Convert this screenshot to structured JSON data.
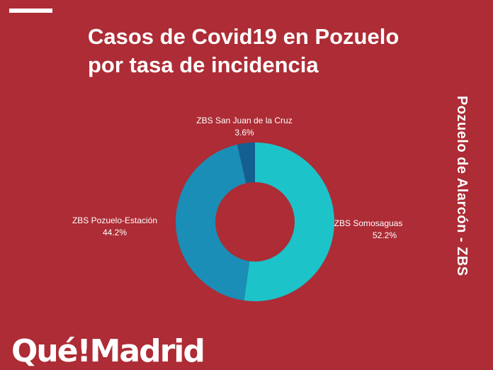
{
  "title_line1": "Casos de Covid19 en Pozuelo",
  "title_line2": "por tasa de incidencia",
  "side_title": "Pozuelo de Alarcón - ZBS",
  "logo": "Qué!Madrid",
  "chart_data": {
    "type": "pie",
    "subtype": "donut",
    "title": "Casos de Covid19 en Pozuelo por tasa de incidencia",
    "categories": [
      "ZBS Somosaguas",
      "ZBS Pozuelo-Estación",
      "ZBS San Juan de la Cruz"
    ],
    "values": [
      52.2,
      44.2,
      3.6
    ],
    "labels": [
      "52.2%",
      "44.2%",
      "3.6%"
    ],
    "colors": [
      "#1cc3c8",
      "#1a8eb6",
      "#135f90"
    ],
    "background": "#ad2c35"
  }
}
